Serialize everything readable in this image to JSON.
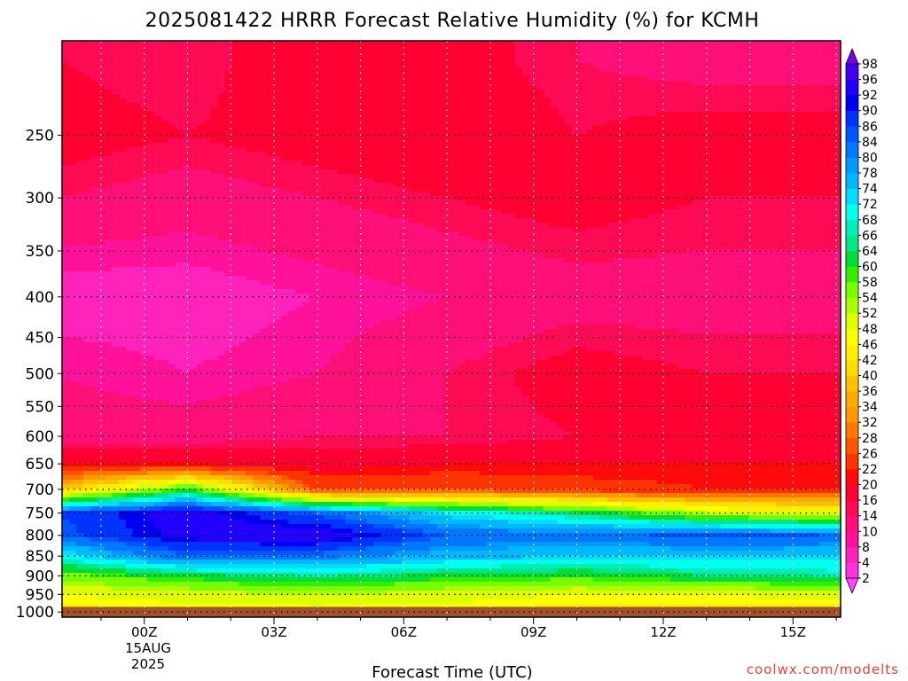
{
  "title": "2025081422 HRRR Forecast Relative Humidity (%) for KCMH",
  "credit": "coolwx.com/modelts",
  "chart_data": {
    "type": "heatmap",
    "title": "2025081422 HRRR Forecast Relative Humidity (%) for KCMH",
    "xlabel": "Forecast Time (UTC)",
    "ylabel": "",
    "x_date_label": [
      "15AUG",
      "2025"
    ],
    "x_ticks": [
      {
        "hour": 2,
        "label": "00Z"
      },
      {
        "hour": 5,
        "label": "03Z"
      },
      {
        "hour": 8,
        "label": "06Z"
      },
      {
        "hour": 11,
        "label": "09Z"
      },
      {
        "hour": 14,
        "label": "12Z"
      },
      {
        "hour": 17,
        "label": "15Z"
      }
    ],
    "xlim": [
      0.1,
      18.1
    ],
    "y_scale": "log",
    "ylim_hpa": [
      1015,
      190
    ],
    "y_ticks": [
      250,
      300,
      350,
      400,
      450,
      500,
      550,
      600,
      650,
      700,
      750,
      800,
      850,
      900,
      950,
      1000
    ],
    "ground_level_hpa": 985,
    "grid": true,
    "colorbar_levels": [
      2,
      4,
      8,
      10,
      14,
      16,
      20,
      22,
      26,
      28,
      32,
      34,
      36,
      40,
      42,
      46,
      48,
      52,
      54,
      58,
      60,
      64,
      66,
      68,
      72,
      74,
      78,
      80,
      84,
      86,
      90,
      92,
      96,
      98
    ],
    "colorbar_colors": [
      "#ff44ff",
      "#ff33dd",
      "#ff22bb",
      "#ff1199",
      "#ff0f77",
      "#ff0a55",
      "#ff0033",
      "#ff0a0a",
      "#ff3300",
      "#ff5500",
      "#ff7700",
      "#ff9900",
      "#ffaa00",
      "#ffc000",
      "#ffdd00",
      "#ffee00",
      "#ffff00",
      "#ddff00",
      "#aaff00",
      "#77ff00",
      "#33ee00",
      "#00dd33",
      "#00e688",
      "#00eebb",
      "#00ffee",
      "#00ddff",
      "#00b8ff",
      "#0099ff",
      "#0077ff",
      "#0055ff",
      "#0033ff",
      "#0000ee",
      "#2200ff",
      "#4400ee",
      "#7700ee"
    ],
    "profiles": [
      {
        "hour": 0,
        "levels_hpa": [
          1000,
          950,
          900,
          850,
          800,
          750,
          700,
          650,
          600,
          500,
          400,
          300,
          250,
          200
        ],
        "rh": [
          44,
          48,
          56,
          70,
          84,
          86,
          38,
          20,
          12,
          10,
          6,
          14,
          18,
          16
        ]
      },
      {
        "hour": 3,
        "levels_hpa": [
          1000,
          950,
          900,
          850,
          800,
          750,
          700,
          650,
          600,
          500,
          400,
          300,
          250,
          200
        ],
        "rh": [
          46,
          50,
          62,
          84,
          94,
          95,
          60,
          20,
          12,
          8,
          6,
          12,
          16,
          14
        ]
      },
      {
        "hour": 6,
        "levels_hpa": [
          1000,
          950,
          900,
          850,
          800,
          750,
          700,
          650,
          600,
          500,
          400,
          300,
          250,
          200
        ],
        "rh": [
          46,
          52,
          66,
          82,
          96,
          84,
          26,
          18,
          14,
          10,
          8,
          14,
          18,
          20
        ]
      },
      {
        "hour": 9,
        "levels_hpa": [
          1000,
          950,
          900,
          850,
          800,
          750,
          700,
          650,
          600,
          500,
          400,
          300,
          250,
          200
        ],
        "rh": [
          46,
          50,
          62,
          76,
          84,
          72,
          26,
          20,
          14,
          14,
          10,
          16,
          20,
          18
        ]
      },
      {
        "hour": 12,
        "levels_hpa": [
          1000,
          950,
          900,
          850,
          800,
          750,
          700,
          650,
          600,
          500,
          400,
          300,
          250,
          200
        ],
        "rh": [
          44,
          48,
          60,
          74,
          82,
          64,
          24,
          20,
          16,
          18,
          12,
          18,
          16,
          14
        ]
      },
      {
        "hour": 15,
        "levels_hpa": [
          1000,
          950,
          900,
          850,
          800,
          750,
          700,
          650,
          600,
          500,
          400,
          300,
          250,
          200
        ],
        "rh": [
          44,
          48,
          64,
          74,
          86,
          52,
          22,
          20,
          18,
          16,
          12,
          16,
          18,
          12
        ]
      },
      {
        "hour": 18,
        "levels_hpa": [
          1000,
          950,
          900,
          850,
          800,
          750,
          700,
          650,
          600,
          500,
          400,
          300,
          250,
          200
        ],
        "rh": [
          44,
          50,
          66,
          74,
          84,
          50,
          22,
          20,
          18,
          16,
          12,
          16,
          18,
          12
        ]
      }
    ]
  }
}
